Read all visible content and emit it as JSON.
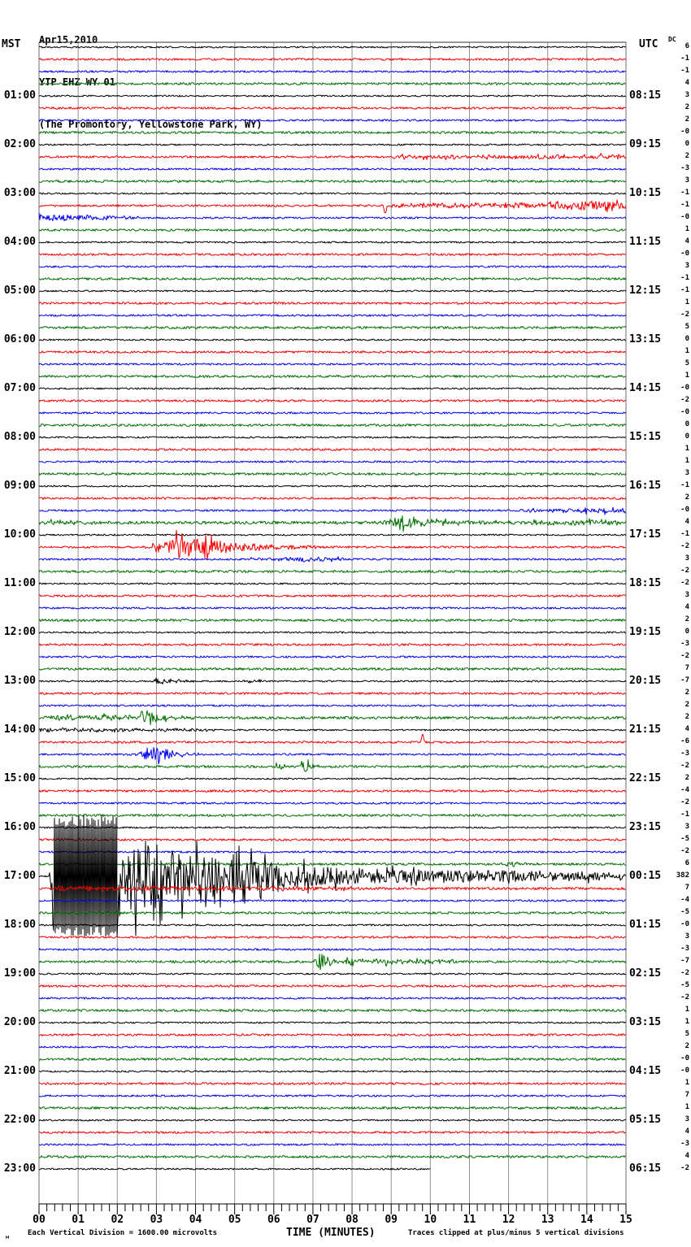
{
  "header": {
    "date": "Apr15,2010",
    "station": "YTP EHZ WY 01",
    "location": "(The Promontory, Yellowstone Park, WY)",
    "left_axis": "MST",
    "right_axis": "UTC",
    "dc_label": "DC"
  },
  "footer": {
    "mark": "м",
    "scale_note": "Each Vertical Division = 1600.00 microvolts",
    "xlabel": "TIME (MINUTES)",
    "clip_note": "Traces clipped at plus/minus 5 vertical divisions"
  },
  "chart_data": {
    "type": "line",
    "subtype": "helicorder-seismogram",
    "title": "YTP EHZ WY 01 (The Promontory, Yellowstone Park, WY) Apr15,2010",
    "xlabel": "TIME (MINUTES)",
    "x_range_minutes": [
      0,
      15
    ],
    "x_ticks": [
      "00",
      "01",
      "02",
      "03",
      "04",
      "05",
      "06",
      "07",
      "08",
      "09",
      "10",
      "11",
      "12",
      "13",
      "14",
      "15"
    ],
    "minutes_per_line": 15,
    "lines_per_hour": 4,
    "clip_divisions": 5,
    "grid": true,
    "legend": "none",
    "colors": {
      "k": "#000000",
      "r": "#f40000",
      "b": "#0000ee",
      "g": "#007000",
      "grid": "#8f8f8f",
      "border": "#6e6e6e",
      "text": "#000000"
    },
    "traces": [
      {
        "c": "k",
        "dc": "6"
      },
      {
        "c": "r",
        "dc": "-1"
      },
      {
        "c": "b",
        "dc": "-1"
      },
      {
        "c": "g",
        "dc": "4"
      },
      {
        "c": "k",
        "dc": "3",
        "mst": "01:00",
        "utc": "08:15"
      },
      {
        "c": "r",
        "dc": "2"
      },
      {
        "c": "b",
        "dc": "2"
      },
      {
        "c": "g",
        "dc": "-0"
      },
      {
        "c": "k",
        "dc": "0",
        "mst": "02:00",
        "utc": "09:15"
      },
      {
        "c": "r",
        "dc": "2",
        "ev": [
          [
            "ramp",
            9,
            15,
            1.6,
            2.2
          ]
        ]
      },
      {
        "c": "b",
        "dc": "-3"
      },
      {
        "c": "g",
        "dc": "3"
      },
      {
        "c": "k",
        "dc": "-1",
        "mst": "03:00",
        "utc": "10:15"
      },
      {
        "c": "r",
        "dc": "-1",
        "ev": [
          [
            "spike",
            8.85,
            -13
          ],
          [
            "ramp",
            8.9,
            13,
            1.8,
            3
          ],
          [
            "ramp",
            13,
            15,
            5,
            6.5
          ]
        ]
      },
      {
        "c": "b",
        "dc": "-0",
        "ev": [
          [
            "ramp",
            0,
            2.6,
            4,
            1.2
          ]
        ]
      },
      {
        "c": "g",
        "dc": "1"
      },
      {
        "c": "k",
        "dc": "4",
        "mst": "04:00",
        "utc": "11:15"
      },
      {
        "c": "r",
        "dc": "-0"
      },
      {
        "c": "b",
        "dc": "3"
      },
      {
        "c": "g",
        "dc": "-1"
      },
      {
        "c": "k",
        "dc": "-1",
        "mst": "05:00",
        "utc": "12:15"
      },
      {
        "c": "r",
        "dc": "1"
      },
      {
        "c": "b",
        "dc": "-2"
      },
      {
        "c": "g",
        "dc": "5"
      },
      {
        "c": "k",
        "dc": "0",
        "mst": "06:00",
        "utc": "13:15"
      },
      {
        "c": "r",
        "dc": "1"
      },
      {
        "c": "b",
        "dc": "5"
      },
      {
        "c": "g",
        "dc": "1"
      },
      {
        "c": "k",
        "dc": "-0",
        "mst": "07:00",
        "utc": "14:15"
      },
      {
        "c": "r",
        "dc": "-2"
      },
      {
        "c": "b",
        "dc": "-0"
      },
      {
        "c": "g",
        "dc": "0"
      },
      {
        "c": "k",
        "dc": "0",
        "mst": "08:00",
        "utc": "15:15"
      },
      {
        "c": "r",
        "dc": "1"
      },
      {
        "c": "b",
        "dc": "1"
      },
      {
        "c": "g",
        "dc": "3"
      },
      {
        "c": "k",
        "dc": "-1",
        "mst": "09:00",
        "utc": "16:15"
      },
      {
        "c": "r",
        "dc": "2"
      },
      {
        "c": "b",
        "dc": "-0",
        "ev": [
          [
            "ramp",
            12.3,
            15,
            2.0,
            2.6
          ]
        ]
      },
      {
        "c": "g",
        "dc": "4",
        "n": 1.8,
        "ev": [
          [
            "burst",
            0.05,
            1.8,
            4,
            0.35
          ],
          [
            "burst",
            8.2,
            12.5,
            7,
            9.3
          ],
          [
            "ramp",
            12.5,
            15,
            2.4,
            2.0
          ]
        ]
      },
      {
        "c": "k",
        "dc": "-1",
        "mst": "10:00",
        "utc": "17:15"
      },
      {
        "c": "r",
        "dc": "-2",
        "ev": [
          [
            "burst",
            2.5,
            7.3,
            15,
            3.6
          ]
        ]
      },
      {
        "c": "b",
        "dc": "3",
        "ev": [
          [
            "ramp",
            5.4,
            7.8,
            2.4,
            2.0
          ]
        ]
      },
      {
        "c": "g",
        "dc": "-2"
      },
      {
        "c": "k",
        "dc": "-2",
        "mst": "11:00",
        "utc": "18:15"
      },
      {
        "c": "r",
        "dc": "3"
      },
      {
        "c": "b",
        "dc": "4"
      },
      {
        "c": "g",
        "dc": "2"
      },
      {
        "c": "k",
        "dc": "0",
        "mst": "12:00",
        "utc": "19:15"
      },
      {
        "c": "r",
        "dc": "-3"
      },
      {
        "c": "b",
        "dc": "-2"
      },
      {
        "c": "g",
        "dc": "7",
        "n": 1.5
      },
      {
        "c": "k",
        "dc": "-7",
        "mst": "13:00",
        "utc": "20:15",
        "ev": [
          [
            "burst",
            2.75,
            4.3,
            4,
            3.0
          ],
          [
            "burst",
            5.1,
            6.2,
            2.5,
            5.4
          ]
        ]
      },
      {
        "c": "r",
        "dc": "2"
      },
      {
        "c": "b",
        "dc": "2"
      },
      {
        "c": "g",
        "dc": "2",
        "n": 1.6,
        "ev": [
          [
            "ramp",
            0,
            2.4,
            2.5,
            2.5
          ],
          [
            "spike",
            2.62,
            13
          ],
          [
            "burst",
            2.5,
            4.2,
            7,
            2.7
          ]
        ]
      },
      {
        "c": "k",
        "dc": "4",
        "mst": "14:00",
        "utc": "21:15",
        "ev": [
          [
            "ramp",
            0,
            4.5,
            2.2,
            1.2
          ]
        ]
      },
      {
        "c": "r",
        "dc": "-6",
        "ev": [
          [
            "spike",
            9.8,
            11
          ]
        ]
      },
      {
        "c": "b",
        "dc": "-3",
        "ev": [
          [
            "burst",
            1.95,
            4.3,
            10,
            3.0
          ]
        ]
      },
      {
        "c": "g",
        "dc": "-2",
        "ev": [
          [
            "burst",
            5.95,
            6.4,
            8,
            6.1
          ],
          [
            "burst",
            6.55,
            7.15,
            9,
            6.8
          ]
        ]
      },
      {
        "c": "k",
        "dc": "2",
        "mst": "15:00",
        "utc": "22:15"
      },
      {
        "c": "r",
        "dc": "-4"
      },
      {
        "c": "b",
        "dc": "-2"
      },
      {
        "c": "g",
        "dc": "-1"
      },
      {
        "c": "k",
        "dc": "3",
        "mst": "16:00",
        "utc": "23:15"
      },
      {
        "c": "r",
        "dc": "-5"
      },
      {
        "c": "b",
        "dc": "-2"
      },
      {
        "c": "g",
        "dc": "6",
        "ev": [
          [
            "burst",
            11.7,
            12.8,
            4,
            12.0
          ]
        ]
      },
      {
        "c": "k",
        "dc": "382",
        "mst": "17:00",
        "utc": "00:15",
        "ev": [
          [
            "ramp",
            0.25,
            0.38,
            6,
            75
          ],
          [
            "clip",
            0.38,
            2.0,
            75
          ],
          [
            "ramp",
            2.0,
            3.8,
            60,
            25
          ],
          [
            "ramp",
            3.8,
            8,
            25,
            9
          ],
          [
            "ramp",
            8,
            15,
            9,
            4.5
          ]
        ]
      },
      {
        "c": "r",
        "dc": "7",
        "n": 1.5,
        "ev": [
          [
            "ramp",
            0.4,
            8,
            2.5,
            1.5
          ]
        ]
      },
      {
        "c": "b",
        "dc": "-4"
      },
      {
        "c": "g",
        "dc": "-5"
      },
      {
        "c": "k",
        "dc": "-0",
        "mst": "18:00",
        "utc": "01:15"
      },
      {
        "c": "r",
        "dc": "3"
      },
      {
        "c": "b",
        "dc": "-3"
      },
      {
        "c": "g",
        "dc": "-7",
        "ev": [
          [
            "burst",
            6.95,
            7.8,
            12,
            7.2
          ],
          [
            "ramp",
            7.8,
            10.8,
            3.5,
            1.5
          ]
        ]
      },
      {
        "c": "k",
        "dc": "-2",
        "mst": "19:00",
        "utc": "02:15"
      },
      {
        "c": "r",
        "dc": "-5"
      },
      {
        "c": "b",
        "dc": "-2"
      },
      {
        "c": "g",
        "dc": "1"
      },
      {
        "c": "k",
        "dc": "1",
        "mst": "20:00",
        "utc": "03:15"
      },
      {
        "c": "r",
        "dc": "5"
      },
      {
        "c": "b",
        "dc": "2"
      },
      {
        "c": "g",
        "dc": "-0"
      },
      {
        "c": "k",
        "dc": "-0",
        "mst": "21:00",
        "utc": "04:15"
      },
      {
        "c": "r",
        "dc": "1"
      },
      {
        "c": "b",
        "dc": "7"
      },
      {
        "c": "g",
        "dc": "1"
      },
      {
        "c": "k",
        "dc": "3",
        "mst": "22:00",
        "utc": "05:15"
      },
      {
        "c": "r",
        "dc": "4"
      },
      {
        "c": "b",
        "dc": "-3"
      },
      {
        "c": "g",
        "dc": "4"
      },
      {
        "c": "k",
        "dc": "-2",
        "mst": "23:00",
        "utc": "06:15",
        "end": 10
      }
    ]
  }
}
